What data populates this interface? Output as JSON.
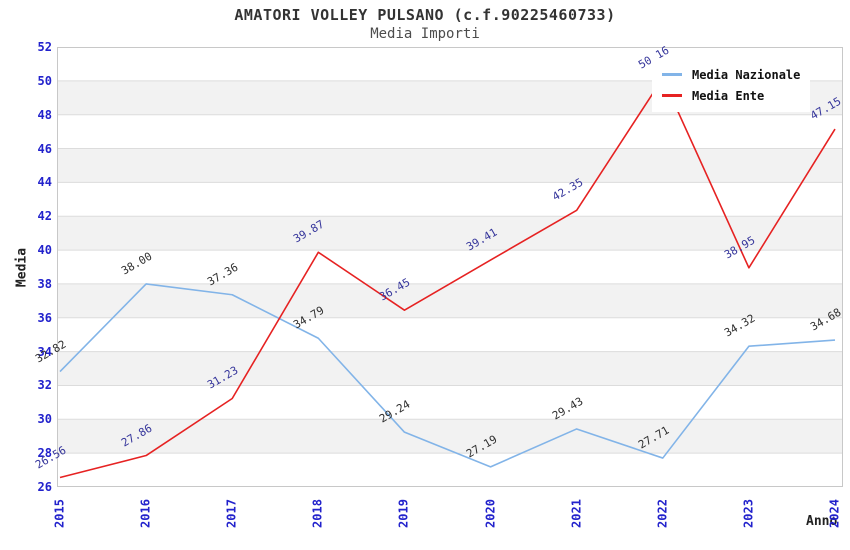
{
  "title": "AMATORI VOLLEY PULSANO (c.f.90225460733)",
  "subtitle": "Media Importi",
  "axes": {
    "y_label": "Media",
    "x_label": "Anno",
    "y_min": 26,
    "y_max": 52,
    "y_step": 2,
    "tick_color": "#2222cc"
  },
  "colors": {
    "band_fill": "#f2f2f2",
    "gridline": "#dcdcdc",
    "plot_border": "#c8c8c8",
    "background": "#ffffff"
  },
  "chart_data": {
    "type": "line",
    "title": "AMATORI VOLLEY PULSANO (c.f.90225460733)",
    "subtitle": "Media Importi",
    "xlabel": "Anno",
    "ylabel": "Media",
    "ylim": [
      26,
      52
    ],
    "y_ticks": [
      26,
      28,
      30,
      32,
      34,
      36,
      38,
      40,
      42,
      44,
      46,
      48,
      50,
      52
    ],
    "grid": true,
    "banded_background": true,
    "legend_position": "top-right",
    "categories": [
      "2015",
      "2016",
      "2017",
      "2018",
      "2019",
      "2020",
      "2021",
      "2022",
      "2023",
      "2024"
    ],
    "series": [
      {
        "name": "Media Nazionale",
        "color": "#82b4e8",
        "label_color": "#2e2e2e",
        "values": [
          32.82,
          38.0,
          37.36,
          34.79,
          29.24,
          27.19,
          29.43,
          27.71,
          34.32,
          34.68
        ],
        "point_labels": [
          "32.82",
          "38.00",
          "37.36",
          "34.79",
          "29.24",
          "27.19",
          "29.43",
          "27.71",
          "34.32",
          "34.68"
        ]
      },
      {
        "name": "Media Ente",
        "color": "#e62222",
        "label_color": "#35359b",
        "values": [
          26.56,
          27.86,
          31.23,
          39.87,
          36.45,
          39.41,
          42.35,
          50.16,
          38.95,
          47.15
        ],
        "point_labels": [
          "26.56",
          "27.86",
          "31.23",
          "39.87",
          "36.45",
          "39.41",
          "42.35",
          "50.16",
          "38.95",
          "47.15"
        ]
      }
    ]
  }
}
